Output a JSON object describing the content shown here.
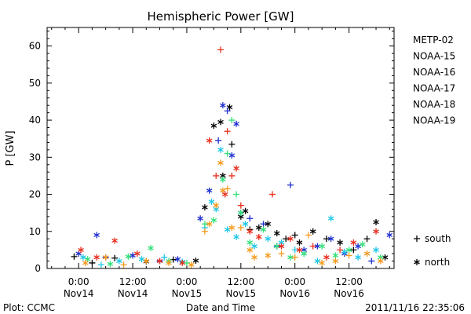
{
  "chart_data": {
    "type": "scatter",
    "title": "Hemispheric Power [GW]",
    "xlabel": "Date and Time",
    "ylabel": "P [GW]",
    "ylim": [
      0,
      65
    ],
    "xlim_hours": [
      -7,
      70
    ],
    "yticks": [
      0,
      10,
      20,
      30,
      40,
      50,
      60
    ],
    "xticks": [
      {
        "hour": 0,
        "line1": "0:00",
        "line2": "Nov14"
      },
      {
        "hour": 12,
        "line1": "12:00",
        "line2": "Nov14"
      },
      {
        "hour": 24,
        "line1": "0:00",
        "line2": "Nov15"
      },
      {
        "hour": 36,
        "line1": "12:00",
        "line2": "Nov15"
      },
      {
        "hour": 48,
        "line1": "0:00",
        "line2": "Nov16"
      },
      {
        "hour": 60,
        "line1": "12:00",
        "line2": "Nov16"
      }
    ],
    "grid": false,
    "legend_position": "right",
    "series": [
      {
        "name": "METP-02",
        "color": "#000000",
        "points": [
          [
            -1,
            3.2,
            "s"
          ],
          [
            3,
            1.5,
            "s"
          ],
          [
            8,
            2.8,
            "s"
          ],
          [
            15,
            1.9,
            "n"
          ],
          [
            21,
            2.4,
            "s"
          ],
          [
            26,
            2.1,
            "n"
          ],
          [
            28,
            16.5,
            "n"
          ],
          [
            30,
            38.5,
            "n"
          ],
          [
            31.5,
            39.5,
            "n"
          ],
          [
            32,
            25,
            "n"
          ],
          [
            33.5,
            43.5,
            "n"
          ],
          [
            34,
            33.5,
            "s"
          ],
          [
            36,
            14,
            "n"
          ],
          [
            37,
            15.5,
            "n"
          ],
          [
            38,
            10.5,
            "s"
          ],
          [
            40,
            11,
            "n"
          ],
          [
            42,
            12,
            "n"
          ],
          [
            44,
            9.5,
            "n"
          ],
          [
            46,
            8,
            "s"
          ],
          [
            48,
            9,
            "s"
          ],
          [
            49,
            7,
            "n"
          ],
          [
            52,
            10,
            "n"
          ],
          [
            55,
            8,
            "s"
          ],
          [
            58,
            7,
            "n"
          ],
          [
            61,
            5,
            "s"
          ],
          [
            64,
            8,
            "s"
          ],
          [
            66,
            12.5,
            "n"
          ],
          [
            68,
            3,
            "n"
          ]
        ]
      },
      {
        "name": "NOAA-15",
        "color": "#1e2fd0",
        "points": [
          [
            0,
            4,
            "n"
          ],
          [
            4,
            9,
            "n"
          ],
          [
            6,
            3,
            "s"
          ],
          [
            12,
            3.5,
            "n"
          ],
          [
            18,
            2,
            "s"
          ],
          [
            22,
            2.5,
            "n"
          ],
          [
            27,
            13.5,
            "n"
          ],
          [
            29,
            21,
            "n"
          ],
          [
            31,
            34.5,
            "s"
          ],
          [
            32,
            44,
            "n"
          ],
          [
            33,
            42.5,
            "s"
          ],
          [
            34,
            30.5,
            "n"
          ],
          [
            35,
            39,
            "n"
          ],
          [
            36,
            15,
            "n"
          ],
          [
            38,
            13.5,
            "s"
          ],
          [
            41,
            12,
            "s"
          ],
          [
            44,
            6,
            "s"
          ],
          [
            47,
            22.5,
            "s"
          ],
          [
            50,
            5,
            "n"
          ],
          [
            53,
            6,
            "n"
          ],
          [
            56,
            8,
            "n"
          ],
          [
            59,
            4,
            "n"
          ],
          [
            62,
            6,
            "n"
          ],
          [
            65,
            2,
            "s"
          ],
          [
            69,
            9,
            "n"
          ]
        ]
      },
      {
        "name": "NOAA-16",
        "color": "#1ec7e8",
        "points": [
          [
            1,
            3,
            "n"
          ],
          [
            5,
            1,
            "s"
          ],
          [
            9,
            2,
            "n"
          ],
          [
            14,
            2.5,
            "n"
          ],
          [
            19,
            3,
            "s"
          ],
          [
            23,
            1.8,
            "n"
          ],
          [
            28,
            11,
            "s"
          ],
          [
            29.5,
            18,
            "n"
          ],
          [
            30.5,
            16,
            "n"
          ],
          [
            31.5,
            32,
            "n"
          ],
          [
            33,
            10.5,
            "n"
          ],
          [
            35,
            8.5,
            "n"
          ],
          [
            37,
            12,
            "n"
          ],
          [
            39,
            6,
            "n"
          ],
          [
            42,
            8,
            "n"
          ],
          [
            45,
            7,
            "n"
          ],
          [
            48,
            5,
            "s"
          ],
          [
            50,
            4,
            "n"
          ],
          [
            53,
            2,
            "n"
          ],
          [
            56,
            13.5,
            "n"
          ],
          [
            59,
            4.5,
            "n"
          ],
          [
            62,
            3,
            "n"
          ],
          [
            66,
            5,
            "n"
          ]
        ]
      },
      {
        "name": "NOAA-17",
        "color": "#33e07a",
        "points": [
          [
            2,
            2.5,
            "n"
          ],
          [
            7,
            1.2,
            "n"
          ],
          [
            11,
            3.2,
            "n"
          ],
          [
            16,
            5.5,
            "n"
          ],
          [
            20,
            2,
            "n"
          ],
          [
            24,
            1.5,
            "s"
          ],
          [
            28,
            12,
            "s"
          ],
          [
            30,
            13,
            "n"
          ],
          [
            32,
            24,
            "n"
          ],
          [
            33,
            31,
            "s"
          ],
          [
            34,
            40,
            "s"
          ],
          [
            35,
            20,
            "s"
          ],
          [
            36,
            15,
            "n"
          ],
          [
            38,
            7,
            "n"
          ],
          [
            41,
            10.5,
            "n"
          ],
          [
            44,
            6,
            "n"
          ],
          [
            47,
            3,
            "n"
          ],
          [
            50,
            4,
            "n"
          ],
          [
            54,
            6,
            "n"
          ],
          [
            57,
            3.5,
            "n"
          ],
          [
            60,
            5,
            "n"
          ],
          [
            63,
            6.5,
            "n"
          ],
          [
            67,
            3,
            "n"
          ]
        ]
      },
      {
        "name": "NOAA-18",
        "color": "#f59a1e",
        "points": [
          [
            1.5,
            1.5,
            "n"
          ],
          [
            6,
            3,
            "n"
          ],
          [
            10,
            1,
            "s"
          ],
          [
            15,
            2,
            "n"
          ],
          [
            20,
            1.5,
            "n"
          ],
          [
            25,
            1,
            "n"
          ],
          [
            28,
            10,
            "s"
          ],
          [
            29,
            12,
            "n"
          ],
          [
            30.5,
            17,
            "n"
          ],
          [
            31.5,
            28.5,
            "n"
          ],
          [
            32,
            21,
            "n"
          ],
          [
            33,
            21.5,
            "s"
          ],
          [
            34,
            11,
            "n"
          ],
          [
            36,
            11,
            "s"
          ],
          [
            38,
            5,
            "n"
          ],
          [
            39,
            3,
            "n"
          ],
          [
            42,
            3.5,
            "n"
          ],
          [
            45,
            4,
            "s"
          ],
          [
            48,
            3,
            "s"
          ],
          [
            51,
            9,
            "s"
          ],
          [
            54,
            1.5,
            "n"
          ],
          [
            57,
            2,
            "n"
          ],
          [
            60,
            3.5,
            "s"
          ],
          [
            64,
            4,
            "n"
          ],
          [
            67,
            2,
            "n"
          ]
        ]
      },
      {
        "name": "NOAA-19",
        "color": "#e82e1e",
        "points": [
          [
            0.5,
            5,
            "n"
          ],
          [
            4,
            3,
            "n"
          ],
          [
            8,
            7.5,
            "n"
          ],
          [
            13,
            4,
            "n"
          ],
          [
            18,
            2,
            "n"
          ],
          [
            23,
            1.5,
            "n"
          ],
          [
            29,
            34.5,
            "n"
          ],
          [
            30.5,
            25,
            "s"
          ],
          [
            31.5,
            59,
            "s"
          ],
          [
            32.5,
            20,
            "n"
          ],
          [
            33,
            37,
            "s"
          ],
          [
            34,
            25,
            "s"
          ],
          [
            35,
            27,
            "n"
          ],
          [
            36,
            17,
            "s"
          ],
          [
            38,
            10,
            "n"
          ],
          [
            40,
            8.5,
            "n"
          ],
          [
            43,
            20,
            "s"
          ],
          [
            45,
            6,
            "n"
          ],
          [
            47,
            8,
            "n"
          ],
          [
            49,
            5,
            "n"
          ],
          [
            52,
            6,
            "s"
          ],
          [
            55,
            3,
            "n"
          ],
          [
            58,
            5,
            "s"
          ],
          [
            61,
            7,
            "n"
          ],
          [
            66,
            10,
            "n"
          ]
        ]
      }
    ],
    "marker_legend": [
      {
        "symbol": "+",
        "label": "south"
      },
      {
        "symbol": "*",
        "label": "north"
      }
    ]
  },
  "footer": {
    "left": "Plot: CCMC",
    "right": "2011/11/16 22:35:06"
  }
}
